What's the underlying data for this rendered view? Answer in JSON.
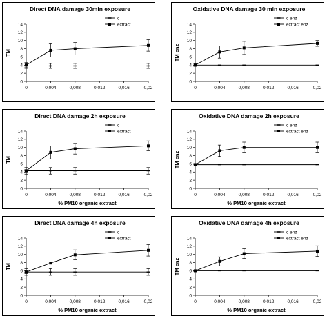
{
  "chart_data": [
    {
      "type": "line",
      "title": "Direct DNA damage 30min exposure",
      "xlabel": "",
      "ylabel": "TM",
      "x": [
        0.004,
        0.008,
        0.02
      ],
      "x_ticks": [
        "0",
        "0,004",
        "0,008",
        "0,012",
        "0,016",
        "0,02"
      ],
      "xlim": [
        0,
        0.02
      ],
      "ylim": [
        0,
        14
      ],
      "y_ticks": [
        "0",
        "2",
        "4",
        "6",
        "8",
        "10",
        "12",
        "14"
      ],
      "legend_position": "top-right",
      "series": [
        {
          "name": "c",
          "x": [
            0,
            0.004,
            0.008,
            0.02
          ],
          "values": [
            3.8,
            3.8,
            3.8,
            3.8
          ],
          "errors": [
            0.6,
            0.6,
            0.6,
            0.6
          ],
          "marker": "dash"
        },
        {
          "name": "extract",
          "x": [
            0,
            0.004,
            0.008,
            0.02
          ],
          "values": [
            4.0,
            7.6,
            8.0,
            8.8
          ],
          "errors": [
            0.6,
            1.6,
            1.5,
            1.4
          ],
          "marker": "square"
        }
      ]
    },
    {
      "type": "line",
      "title": "Oxidative DNA damage 30 min exposure",
      "xlabel": "",
      "ylabel": "TM enz",
      "x_ticks": [
        "0",
        "0,004",
        "0,008",
        "0,012",
        "0,016",
        "0,02"
      ],
      "xlim": [
        0,
        0.02
      ],
      "ylim": [
        0,
        14
      ],
      "y_ticks": [
        "0",
        "2",
        "4",
        "6",
        "8",
        "10",
        "12",
        "14"
      ],
      "legend_position": "top-right",
      "series": [
        {
          "name": "c enz",
          "x": [
            0,
            0.004,
            0.008,
            0.02
          ],
          "values": [
            4.0,
            4.0,
            4.0,
            4.0
          ],
          "errors": [
            0,
            0,
            0,
            0
          ],
          "marker": "dash"
        },
        {
          "name": "extract enz",
          "x": [
            0,
            0.004,
            0.008,
            0.02
          ],
          "values": [
            4.0,
            7.2,
            8.2,
            9.3
          ],
          "errors": [
            0.3,
            1.5,
            1.6,
            0.7
          ],
          "marker": "square"
        }
      ]
    },
    {
      "type": "line",
      "title": "Direct DNA damage 2h exposure",
      "xlabel": "% PM10 organic extract",
      "ylabel": "TM",
      "x_ticks": [
        "0",
        "0,004",
        "0,008",
        "0,012",
        "0,016",
        "0,02"
      ],
      "xlim": [
        0,
        0.02
      ],
      "ylim": [
        0,
        14
      ],
      "y_ticks": [
        "0",
        "2",
        "4",
        "6",
        "8",
        "10",
        "12",
        "14"
      ],
      "legend_position": "top-right",
      "series": [
        {
          "name": "c",
          "x": [
            0,
            0.004,
            0.008,
            0.02
          ],
          "values": [
            4.3,
            4.3,
            4.3,
            4.3
          ],
          "errors": [
            0.8,
            0.8,
            0.8,
            0.8
          ],
          "marker": "dash"
        },
        {
          "name": "extract",
          "x": [
            0,
            0.004,
            0.008,
            0.02
          ],
          "values": [
            4.3,
            8.8,
            9.7,
            10.4
          ],
          "errors": [
            0.3,
            1.6,
            1.3,
            1.2
          ],
          "marker": "square"
        }
      ]
    },
    {
      "type": "line",
      "title": "Oxidative DNA damage 2h exposure",
      "xlabel": "% PM10 organic extract",
      "ylabel": "TM enz",
      "x_ticks": [
        "0",
        "0,004",
        "0,008",
        "0,012",
        "0,016",
        "0,02"
      ],
      "xlim": [
        0,
        0.02
      ],
      "ylim": [
        0,
        14
      ],
      "y_ticks": [
        "0",
        "2",
        "4",
        "6",
        "8",
        "10",
        "12",
        "14"
      ],
      "legend_position": "top-right",
      "series": [
        {
          "name": "c enz",
          "x": [
            0,
            0.004,
            0.008,
            0.02
          ],
          "values": [
            5.8,
            5.8,
            5.8,
            5.8
          ],
          "errors": [
            0,
            0,
            0,
            0
          ],
          "marker": "dash"
        },
        {
          "name": "extract enz",
          "x": [
            0,
            0.004,
            0.008,
            0.02
          ],
          "values": [
            5.8,
            9.2,
            10.0,
            10.0
          ],
          "errors": [
            0.3,
            1.4,
            1.3,
            1.3
          ],
          "marker": "square"
        }
      ]
    },
    {
      "type": "line",
      "title": "Direct DNA damage 4h exposure",
      "xlabel": "% PM10 organic extract",
      "ylabel": "TM",
      "x_ticks": [
        "0",
        "0,004",
        "0,008",
        "0,012",
        "0,016",
        "0,02"
      ],
      "xlim": [
        0,
        0.02
      ],
      "ylim": [
        0,
        14
      ],
      "y_ticks": [
        "0",
        "2",
        "4",
        "6",
        "8",
        "10",
        "12",
        "14"
      ],
      "legend_position": "top-right",
      "series": [
        {
          "name": "c",
          "x": [
            0,
            0.004,
            0.008,
            0.02
          ],
          "values": [
            5.7,
            5.7,
            5.7,
            5.7
          ],
          "errors": [
            0.8,
            0.8,
            0.8,
            0.8
          ],
          "marker": "dash"
        },
        {
          "name": "extract",
          "x": [
            0,
            0.004,
            0.008,
            0.02
          ],
          "values": [
            5.7,
            7.9,
            9.9,
            11.0
          ],
          "errors": [
            0.4,
            0.2,
            1.2,
            1.4
          ],
          "marker": "square"
        }
      ]
    },
    {
      "type": "line",
      "title": "Oxidative DNA damage 4h exposure",
      "xlabel": "% PM10 organic extract",
      "ylabel": "TM enz",
      "x_ticks": [
        "0",
        "0,004",
        "0,008",
        "0,012",
        "0,016",
        "0,02"
      ],
      "xlim": [
        0,
        0.02
      ],
      "ylim": [
        0,
        14
      ],
      "y_ticks": [
        "0",
        "2",
        "4",
        "6",
        "8",
        "10",
        "12",
        "14"
      ],
      "legend_position": "top-right",
      "series": [
        {
          "name": "c enz",
          "x": [
            0,
            0.004,
            0.008,
            0.02
          ],
          "values": [
            6.0,
            6.0,
            6.0,
            6.0
          ],
          "errors": [
            0,
            0,
            0,
            0
          ],
          "marker": "dash"
        },
        {
          "name": "extract enz",
          "x": [
            0,
            0.004,
            0.008,
            0.02
          ],
          "values": [
            6.0,
            8.3,
            10.2,
            10.8
          ],
          "errors": [
            0.2,
            1.1,
            1.2,
            1.3
          ],
          "marker": "square"
        }
      ]
    }
  ]
}
